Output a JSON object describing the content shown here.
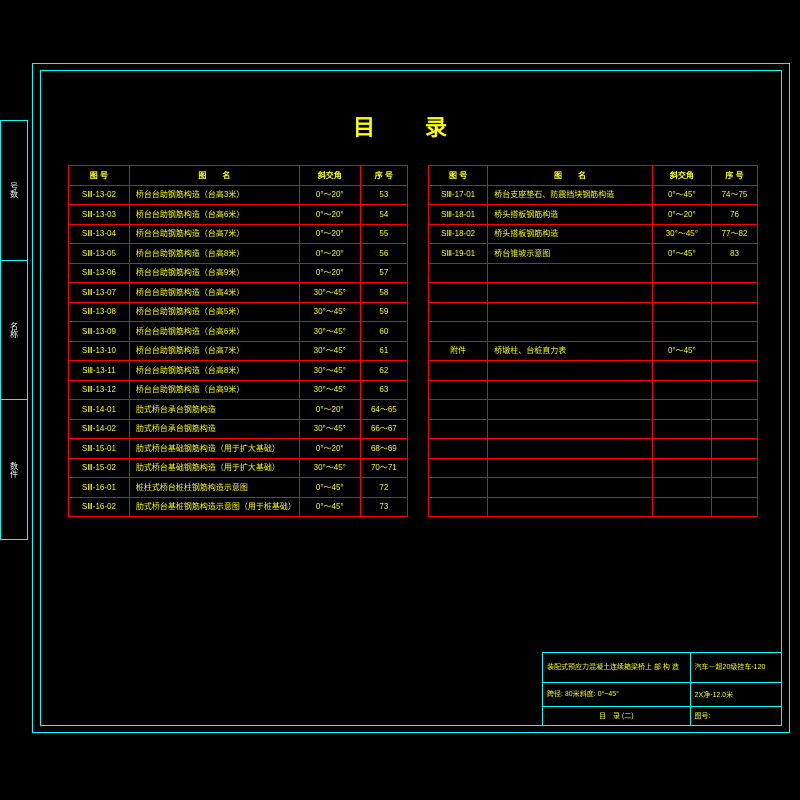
{
  "title": "目录",
  "headers": {
    "id": "图 号",
    "name": "图　　名",
    "angle": "斜交角",
    "seq": "序 号"
  },
  "left_rows": [
    {
      "id": "SⅢ-13-02",
      "name": "桥台台助钢筋构造（台高3米）",
      "angle": "0°～20°",
      "seq": "53"
    },
    {
      "id": "SⅢ-13-03",
      "name": "桥台台助钢筋构造（台高6米）",
      "angle": "0°～20°",
      "seq": "54"
    },
    {
      "id": "SⅢ-13-04",
      "name": "桥台台助钢筋构造（台高7米）",
      "angle": "0°～20°",
      "seq": "55"
    },
    {
      "id": "SⅢ-13-05",
      "name": "桥台台助钢筋构造（台高8米）",
      "angle": "0°～20°",
      "seq": "56"
    },
    {
      "id": "SⅢ-13-06",
      "name": "桥台台助钢筋构造（台高9米）",
      "angle": "0°～20°",
      "seq": "57"
    },
    {
      "id": "SⅢ-13-07",
      "name": "桥台台助钢筋构造（台高4米）",
      "angle": "30°～45°",
      "seq": "58"
    },
    {
      "id": "SⅢ-13-08",
      "name": "桥台台助钢筋构造（台高5米）",
      "angle": "30°～45°",
      "seq": "59"
    },
    {
      "id": "SⅢ-13-09",
      "name": "桥台台助钢筋构造（台高6米）",
      "angle": "30°～45°",
      "seq": "60"
    },
    {
      "id": "SⅢ-13-10",
      "name": "桥台台助钢筋构造（台高7米）",
      "angle": "30°～45°",
      "seq": "61"
    },
    {
      "id": "SⅢ-13-11",
      "name": "桥台台助钢筋构造（台高8米）",
      "angle": "30°～45°",
      "seq": "62"
    },
    {
      "id": "SⅢ-13-12",
      "name": "桥台台助钢筋构造（台高9米）",
      "angle": "30°～45°",
      "seq": "63"
    },
    {
      "id": "SⅢ-14-01",
      "name": "肋式桥台承台钢筋构造",
      "angle": "0°～20°",
      "seq": "64～65"
    },
    {
      "id": "SⅢ-14-02",
      "name": "肋式桥台承台钢筋构造",
      "angle": "30°～45°",
      "seq": "66～67"
    },
    {
      "id": "SⅢ-15-01",
      "name": "肋式桥台基础钢筋构造（用于扩大基础）",
      "angle": "0°～20°",
      "seq": "68～69"
    },
    {
      "id": "SⅢ-15-02",
      "name": "肋式桥台基础钢筋构造（用于扩大基础）",
      "angle": "30°～45°",
      "seq": "70～71"
    },
    {
      "id": "SⅢ-16-01",
      "name": "桩柱式桥台桩柱钢筋构造示意图",
      "angle": "0°～45°",
      "seq": "72"
    },
    {
      "id": "SⅢ-16-02",
      "name": "肋式桥台基桩钢筋构造示意图（用于桩基础）",
      "angle": "0°～45°",
      "seq": "73"
    }
  ],
  "right_rows": [
    {
      "id": "SⅢ-17-01",
      "name": "桥台支座垫石、防震挡块钢筋构造",
      "angle": "0°～45°",
      "seq": "74～75"
    },
    {
      "id": "SⅢ-18-01",
      "name": "桥头搭板钢筋构造",
      "angle": "0°～20°",
      "seq": "76"
    },
    {
      "id": "SⅢ-18-02",
      "name": "桥头搭板钢筋构造",
      "angle": "30°～45°",
      "seq": "77～82"
    },
    {
      "id": "SⅢ-19-01",
      "name": "桥台锥坡示意图",
      "angle": "0°～45°",
      "seq": "83"
    },
    {
      "id": "",
      "name": "",
      "angle": "",
      "seq": ""
    },
    {
      "id": "",
      "name": "",
      "angle": "",
      "seq": ""
    },
    {
      "id": "",
      "name": "",
      "angle": "",
      "seq": ""
    },
    {
      "id": "",
      "name": "",
      "angle": "",
      "seq": ""
    },
    {
      "id": "附件",
      "name": "桥墩柱、台桩直力表",
      "angle": "0°～45°",
      "seq": ""
    },
    {
      "id": "",
      "name": "",
      "angle": "",
      "seq": ""
    },
    {
      "id": "",
      "name": "",
      "angle": "",
      "seq": ""
    },
    {
      "id": "",
      "name": "",
      "angle": "",
      "seq": ""
    },
    {
      "id": "",
      "name": "",
      "angle": "",
      "seq": ""
    },
    {
      "id": "",
      "name": "",
      "angle": "",
      "seq": ""
    },
    {
      "id": "",
      "name": "",
      "angle": "",
      "seq": ""
    },
    {
      "id": "",
      "name": "",
      "angle": "",
      "seq": ""
    },
    {
      "id": "",
      "name": "",
      "angle": "",
      "seq": ""
    }
  ],
  "side_labels": [
    "号数",
    "名称",
    "数件"
  ],
  "title_block": {
    "row1_left": "装配式预应力混凝土连续箱梁桥\n上 部 构 造",
    "row1_right_top": "汽车－超20级\n挂车-120",
    "row2_left": "跨径: 30米\n斜度: 0°~45°",
    "row2_right": "2X净-12.0米",
    "row3_left": "目　录 (二)",
    "row3_right": "图号:"
  }
}
